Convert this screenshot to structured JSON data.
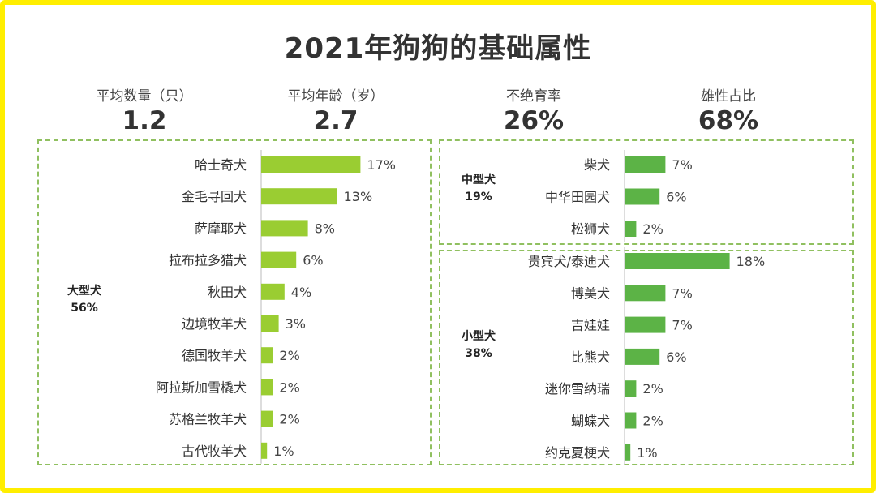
{
  "title": "2021年狗狗的基础属性",
  "stats": [
    {
      "label": "平均数量（只）",
      "value": "1.2"
    },
    {
      "label": "平均年龄（岁）",
      "value": "2.7"
    },
    {
      "label": "不绝育率",
      "value": "26%"
    },
    {
      "label": "雄性占比",
      "value": "68%"
    }
  ],
  "colors": {
    "frame": "#ffee00",
    "large_bar": "#9acd32",
    "mid_small_bar": "#5cb346",
    "dashed_border": "#90c060"
  },
  "chart_data": [
    {
      "type": "bar",
      "orientation": "horizontal",
      "group": "大型犬",
      "group_share": "56%",
      "categories": [
        "哈士奇犬",
        "金毛寻回犬",
        "萨摩耶犬",
        "拉布拉多猎犬",
        "秋田犬",
        "边境牧羊犬",
        "德国牧羊犬",
        "阿拉斯加雪橇犬",
        "苏格兰牧羊犬",
        "古代牧羊犬"
      ],
      "values": [
        17,
        13,
        8,
        6,
        4,
        3,
        2,
        2,
        2,
        1
      ],
      "labels": [
        "17%",
        "13%",
        "8%",
        "6%",
        "4%",
        "3%",
        "2%",
        "2%",
        "2%",
        "1%"
      ]
    },
    {
      "type": "bar",
      "orientation": "horizontal",
      "group": "中型犬",
      "group_share": "19%",
      "categories": [
        "柴犬",
        "中华田园犬",
        "松狮犬"
      ],
      "values": [
        7,
        6,
        2
      ],
      "labels": [
        "7%",
        "6%",
        "2%"
      ]
    },
    {
      "type": "bar",
      "orientation": "horizontal",
      "group": "小型犬",
      "group_share": "38%",
      "categories": [
        "贵宾犬/泰迪犬",
        "博美犬",
        "吉娃娃",
        "比熊犬",
        "迷你雪纳瑞",
        "蝴蝶犬",
        "约克夏梗犬"
      ],
      "values": [
        18,
        7,
        7,
        6,
        2,
        2,
        1
      ],
      "labels": [
        "18%",
        "7%",
        "7%",
        "6%",
        "2%",
        "2%",
        "1%"
      ]
    }
  ]
}
